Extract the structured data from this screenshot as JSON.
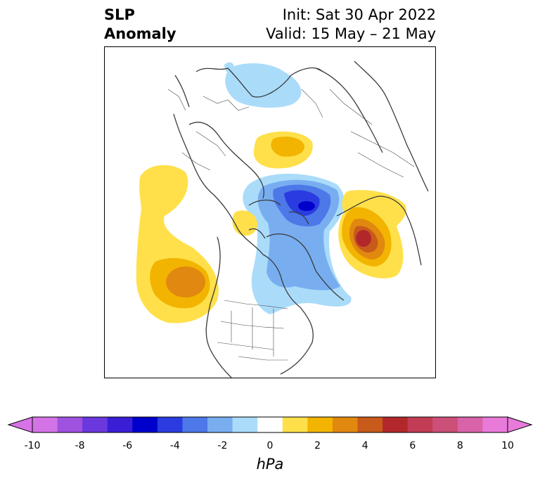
{
  "title": {
    "left_line1": "SLP",
    "left_line2": "Anomaly",
    "right_line1": "Init: Sat 30 Apr 2022",
    "right_line2": "Valid: 15 May – 21 May"
  },
  "map": {
    "projection": "north-polar-stereographic",
    "field": "sea level pressure anomaly",
    "features": [
      {
        "name": "positive anomaly",
        "region": "NE Pacific",
        "peak_hPa": 3
      },
      {
        "name": "positive anomaly",
        "region": "Scandinavia / N Europe",
        "peak_hPa": 2
      },
      {
        "name": "positive anomaly",
        "region": "Bering / E Siberia",
        "peak_hPa": 6
      },
      {
        "name": "negative anomaly",
        "region": "Arctic Ocean",
        "peak_hPa": -7
      },
      {
        "name": "negative anomaly",
        "region": "Central Asia",
        "peak_hPa": -2
      },
      {
        "name": "negative anomaly",
        "region": "Greenland / N Atlantic",
        "peak_hPa": -3
      }
    ]
  },
  "colorbar": {
    "unit": "hPa",
    "ticks": [
      "-10",
      "-8",
      "-6",
      "-4",
      "-2",
      "0",
      "2",
      "4",
      "6",
      "8",
      "10"
    ],
    "colors": [
      "#d473e6",
      "#9f52e0",
      "#6a38dc",
      "#3a1ed6",
      "#0000cc",
      "#2a3ce0",
      "#4c78e8",
      "#78aef0",
      "#aadcfa",
      "#ffffff",
      "#ffe04a",
      "#f2b400",
      "#e0880f",
      "#c85a1a",
      "#b2282a",
      "#c23c55",
      "#cc4f78",
      "#d863a8",
      "#e87ada"
    ],
    "extend_min_color": "#d773e8",
    "extend_max_color": "#e87ada"
  }
}
